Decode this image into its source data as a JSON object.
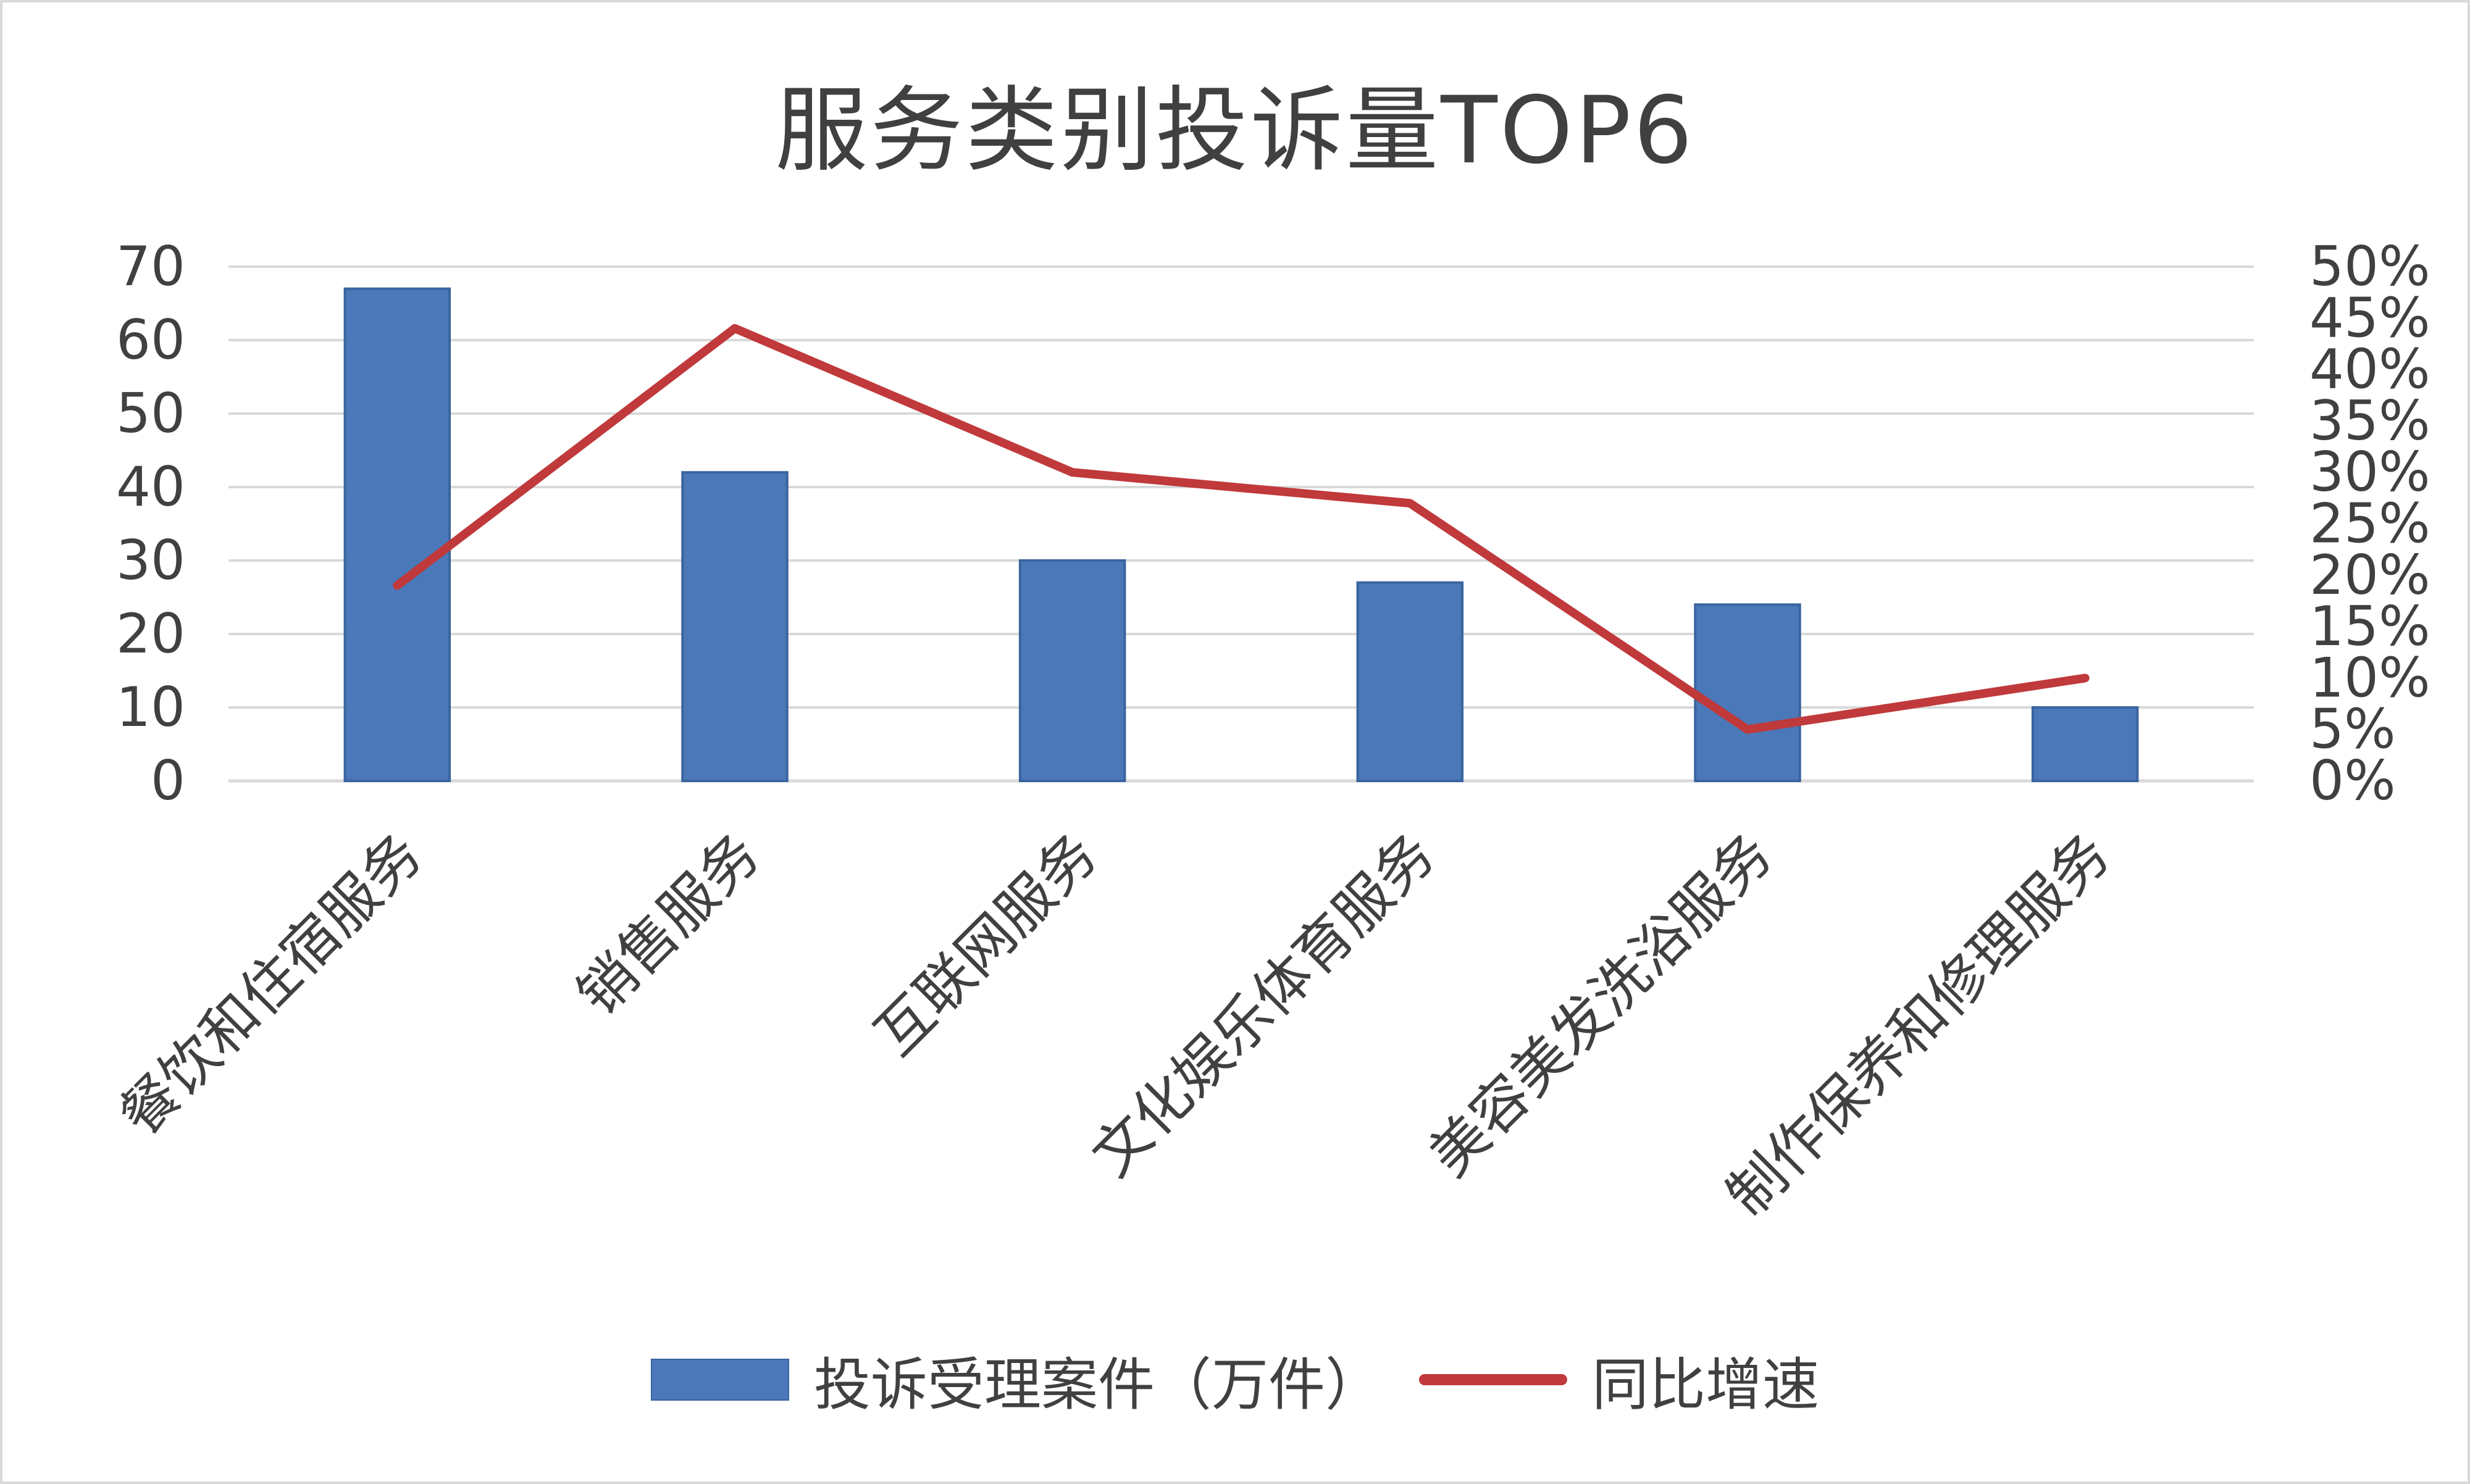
{
  "chart_data": {
    "type": "bar",
    "title": "服务类别投诉量TOP6",
    "categories": [
      "餐饮和住宿服务",
      "销售服务",
      "互联网服务",
      "文化娱乐体育服务",
      "美容美发洗浴服务",
      "制作保养和修理服务"
    ],
    "series": [
      {
        "name": "投诉受理案件（万件）",
        "type": "bar",
        "axis": "left",
        "values": [
          67,
          42,
          30,
          27,
          24,
          10
        ]
      },
      {
        "name": "同比增速",
        "type": "line",
        "axis": "right",
        "values": [
          19,
          44,
          30,
          27,
          5,
          10
        ]
      }
    ],
    "y_left": {
      "ylim": [
        0,
        70
      ],
      "ticks": [
        "0",
        "10",
        "20",
        "30",
        "40",
        "50",
        "60",
        "70"
      ]
    },
    "y_right": {
      "ylim": [
        0,
        50
      ],
      "ticks": [
        "0%",
        "5%",
        "10%",
        "15%",
        "20%",
        "25%",
        "30%",
        "35%",
        "40%",
        "45%",
        "50%"
      ]
    },
    "grid": true,
    "legend_position": "bottom",
    "colors": {
      "bar": "#4a78b8",
      "line": "#c0393b",
      "grid": "#d9d9d9",
      "text": "#404040"
    }
  }
}
